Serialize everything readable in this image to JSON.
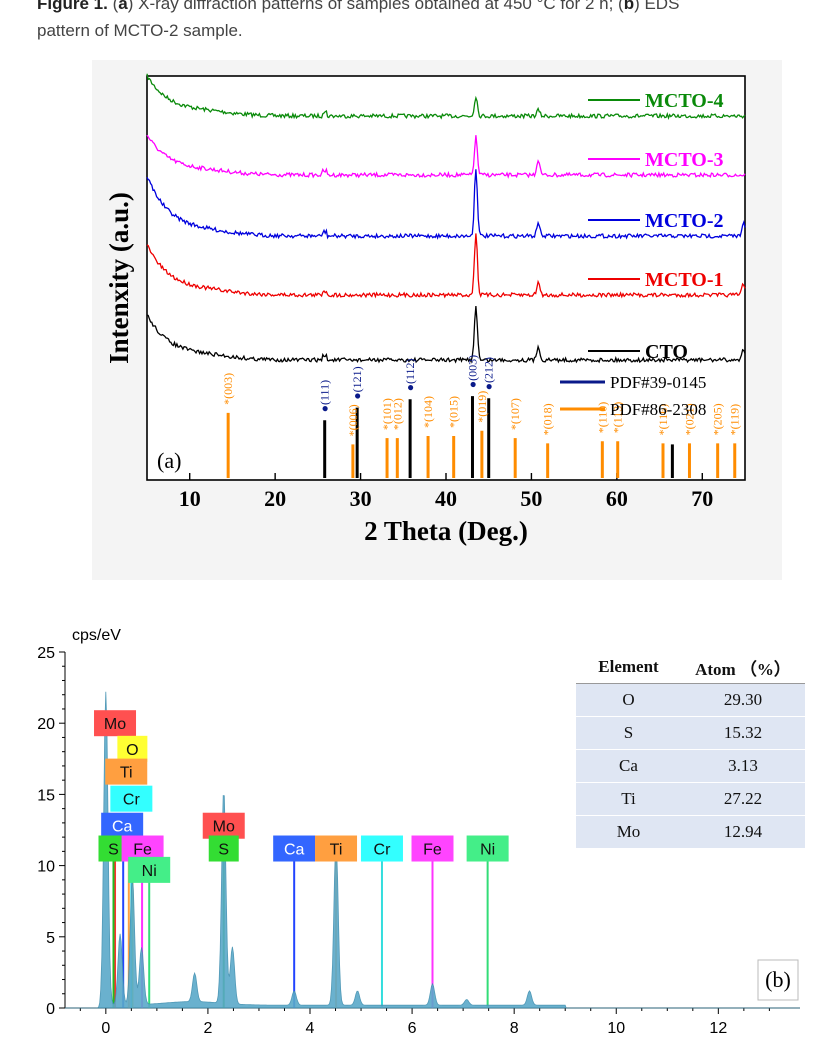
{
  "caption": {
    "prefix": "Figure 1.",
    "a_tag": "a",
    "a_text": "X-ray diffraction patterns of samples obtained at 450 °C for 2 h;",
    "b_tag": "b",
    "b_text": "EDS",
    "line2": "pattern of MCTO-2 sample."
  },
  "colors": {
    "mcto4": "#0a8a0a",
    "mcto3": "#ff00ff",
    "mcto2": "#0000dd",
    "mcto1": "#ee0000",
    "cto": "#000000",
    "pdf39": "#000000",
    "pdf86": "#ff8c00",
    "eds_fill": "#5aa9c9"
  },
  "chart_data": [
    {
      "type": "line",
      "panel_label": "(a)",
      "xlabel": "2 Theta (Deg.)",
      "ylabel": "Intenxity (a.u.)",
      "xlim": [
        5,
        75
      ],
      "xticks": [
        10,
        20,
        30,
        40,
        50,
        60,
        70
      ],
      "series": [
        {
          "name": "MCTO-4",
          "color": "#0a8a0a",
          "peaks": [
            [
              43.5,
              20
            ],
            [
              50.8,
              6
            ]
          ]
        },
        {
          "name": "MCTO-3",
          "color": "#ff00ff",
          "peaks": [
            [
              43.5,
              38
            ],
            [
              50.8,
              16
            ]
          ]
        },
        {
          "name": "MCTO-2",
          "color": "#0000dd",
          "peaks": [
            [
              43.5,
              68
            ],
            [
              50.8,
              14
            ],
            [
              74.8,
              14
            ]
          ]
        },
        {
          "name": "MCTO-1",
          "color": "#ee0000",
          "peaks": [
            [
              43.5,
              62
            ],
            [
              50.8,
              13
            ],
            [
              74.8,
              12
            ]
          ]
        },
        {
          "name": "CTO",
          "color": "#000000",
          "peaks": [
            [
              43.5,
              55
            ],
            [
              50.8,
              14
            ],
            [
              74.8,
              12
            ]
          ]
        }
      ],
      "references": [
        {
          "name": "PDF#39-0145",
          "color": "#000000",
          "lines": [
            {
              "x": 25.8,
              "h": 0.55,
              "label": "(111)"
            },
            {
              "x": 29.6,
              "h": 0.67,
              "label": "(121)"
            },
            {
              "x": 35.8,
              "h": 0.75,
              "label": "(112)"
            },
            {
              "x": 43.1,
              "h": 0.78,
              "label": "(003)"
            },
            {
              "x": 45.0,
              "h": 0.76,
              "label": "(212)"
            },
            {
              "x": 66.5,
              "h": 0.32,
              "label": ""
            }
          ]
        },
        {
          "name": "PDF#86-2308",
          "color": "#ff8c00",
          "lines": [
            {
              "x": 14.5,
              "h": 0.62,
              "label": "(003)"
            },
            {
              "x": 29.1,
              "h": 0.32,
              "label": "(006)"
            },
            {
              "x": 33.1,
              "h": 0.38,
              "label": "(101)"
            },
            {
              "x": 34.3,
              "h": 0.38,
              "label": "(012)"
            },
            {
              "x": 37.9,
              "h": 0.4,
              "label": "(104)"
            },
            {
              "x": 40.9,
              "h": 0.4,
              "label": "(015)"
            },
            {
              "x": 44.2,
              "h": 0.45,
              "label": "(019)"
            },
            {
              "x": 48.1,
              "h": 0.38,
              "label": "(107)"
            },
            {
              "x": 51.9,
              "h": 0.33,
              "label": "(018)"
            },
            {
              "x": 58.3,
              "h": 0.35,
              "label": "(110)"
            },
            {
              "x": 60.1,
              "h": 0.35,
              "label": "(113)"
            },
            {
              "x": 65.4,
              "h": 0.33,
              "label": "(116)"
            },
            {
              "x": 68.5,
              "h": 0.33,
              "label": "(021)"
            },
            {
              "x": 71.8,
              "h": 0.33,
              "label": "(205)"
            },
            {
              "x": 73.8,
              "h": 0.33,
              "label": "(119)"
            }
          ]
        }
      ]
    },
    {
      "type": "area",
      "panel_label": "(b)",
      "ylabel": "cps/eV",
      "xlim": [
        -0.8,
        13.6
      ],
      "ylim": [
        0,
        25
      ],
      "xticks": [
        0,
        2,
        4,
        6,
        8,
        10,
        12
      ],
      "yticks": [
        0,
        5,
        10,
        15,
        20,
        25
      ],
      "spectrum_peaks": [
        [
          0.0,
          22.2
        ],
        [
          0.28,
          5
        ],
        [
          0.52,
          9
        ],
        [
          0.7,
          4
        ],
        [
          1.74,
          2
        ],
        [
          2.31,
          15
        ],
        [
          2.48,
          4
        ],
        [
          3.69,
          1
        ],
        [
          4.51,
          11.5
        ],
        [
          4.93,
          1
        ],
        [
          6.4,
          1.5
        ],
        [
          7.07,
          0.4
        ],
        [
          8.3,
          1
        ]
      ],
      "element_labels": [
        {
          "text": "Mo",
          "x": 0.18,
          "y": 20.0,
          "bg": "#ff5050"
        },
        {
          "text": "O",
          "x": 0.52,
          "y": 18.2,
          "bg": "#ffff33"
        },
        {
          "text": "Ti",
          "x": 0.4,
          "y": 16.6,
          "bg": "#ff9f40"
        },
        {
          "text": "Cr",
          "x": 0.5,
          "y": 14.7,
          "bg": "#33ffff"
        },
        {
          "text": "Ca",
          "x": 0.32,
          "y": 12.8,
          "bg": "#3366ff"
        },
        {
          "text": "S",
          "x": 0.15,
          "y": 11.2,
          "bg": "#33dd33"
        },
        {
          "text": "Fe",
          "x": 0.72,
          "y": 11.2,
          "bg": "#ff44ff"
        },
        {
          "text": "Ni",
          "x": 0.85,
          "y": 9.7,
          "bg": "#44ee88"
        },
        {
          "text": "Mo",
          "x": 2.31,
          "y": 12.8,
          "bg": "#ff5050"
        },
        {
          "text": "S",
          "x": 2.31,
          "y": 11.2,
          "bg": "#33dd33"
        },
        {
          "text": "Ca",
          "x": 3.69,
          "y": 11.2,
          "bg": "#3366ff"
        },
        {
          "text": "Ti",
          "x": 4.51,
          "y": 11.2,
          "bg": "#ff9f40"
        },
        {
          "text": "Cr",
          "x": 5.41,
          "y": 11.2,
          "bg": "#33ffff"
        },
        {
          "text": "Fe",
          "x": 6.4,
          "y": 11.2,
          "bg": "#ff44ff"
        },
        {
          "text": "Ni",
          "x": 7.48,
          "y": 11.2,
          "bg": "#44ee88"
        }
      ],
      "marker_lines": [
        {
          "x": 0.18,
          "color": "#ff3030"
        },
        {
          "x": 0.52,
          "color": "#dddd00"
        },
        {
          "x": 0.45,
          "color": "#ff9f40"
        },
        {
          "x": 0.5,
          "color": "#33dddd"
        },
        {
          "x": 0.34,
          "color": "#2244ff"
        },
        {
          "x": 0.15,
          "color": "#22bb22"
        },
        {
          "x": 0.71,
          "color": "#ff33ff"
        },
        {
          "x": 0.85,
          "color": "#33dd77"
        },
        {
          "x": 2.31,
          "color": "#22bb22"
        },
        {
          "x": 3.69,
          "color": "#2244ff"
        },
        {
          "x": 4.51,
          "color": "#ff9f40"
        },
        {
          "x": 5.41,
          "color": "#33dddd"
        },
        {
          "x": 6.4,
          "color": "#ff33ff"
        },
        {
          "x": 7.48,
          "color": "#33dd77"
        }
      ],
      "table": {
        "headers": [
          "Element",
          "Atom （%）"
        ],
        "rows": [
          [
            "O",
            "29.30"
          ],
          [
            "S",
            "15.32"
          ],
          [
            "Ca",
            "3.13"
          ],
          [
            "Ti",
            "27.22"
          ],
          [
            "Mo",
            "12.94"
          ]
        ]
      }
    }
  ]
}
